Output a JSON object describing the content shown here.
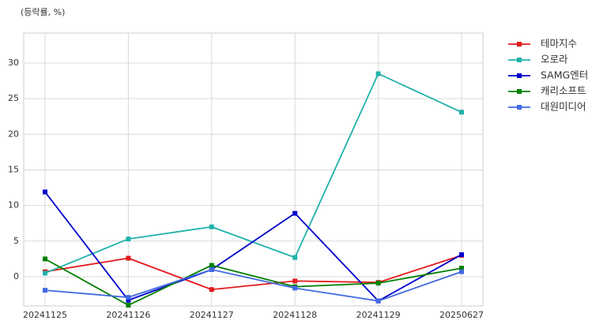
{
  "chart_data": {
    "type": "line",
    "title": "(등락률, %)",
    "categories": [
      "20241125",
      "20241126",
      "20241127",
      "20241128",
      "20241129",
      "20250627"
    ],
    "series": [
      {
        "name": "테마지수",
        "color": "#e31a1c",
        "values": [
          0.7,
          2.6,
          -1.8,
          -0.6,
          -0.8,
          3.0
        ]
      },
      {
        "name": "오로라",
        "color": "#20b2aa",
        "values": [
          0.5,
          5.3,
          7.0,
          2.7,
          28.5,
          23.1
        ]
      },
      {
        "name": "SAMG엔터",
        "color": "#0000cd",
        "values": [
          11.9,
          -3.3,
          1.0,
          8.9,
          -3.4,
          3.1
        ]
      },
      {
        "name": "캐리소프트",
        "color": "#008000",
        "values": [
          2.5,
          -4.0,
          1.6,
          -1.4,
          -0.9,
          1.2
        ]
      },
      {
        "name": "대원미디어",
        "color": "#4169e1",
        "values": [
          -1.9,
          -2.9,
          1.0,
          -1.6,
          -3.4,
          0.7
        ]
      }
    ],
    "ylim": [
      -4.1,
      34.2
    ],
    "yticks": [
      0,
      5,
      10,
      15,
      20,
      25,
      30
    ],
    "grid": true,
    "legend": "outside-right"
  }
}
